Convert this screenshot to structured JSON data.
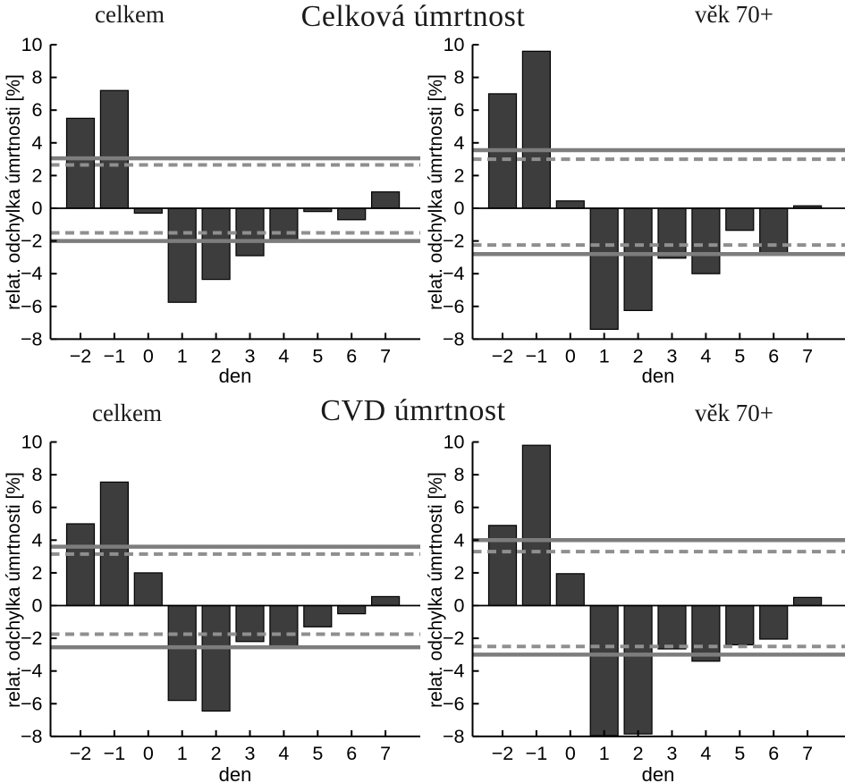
{
  "titles": {
    "top": "Celková úmrtnost",
    "bottom": "CVD úmrtnost"
  },
  "chart_data": {
    "type": "bar",
    "categories": [
      -2,
      -1,
      0,
      1,
      2,
      3,
      4,
      5,
      6,
      7
    ],
    "xlabel": "den",
    "ylabel": "relat. odchylka úmrtnosti [%]",
    "ylim": [
      -8,
      10
    ],
    "yticks": [
      10,
      8,
      6,
      4,
      2,
      0,
      -2,
      -4,
      -6,
      -8
    ],
    "grid": false,
    "legend": "none",
    "bar_color": "#3d3d3d",
    "bar_edge_color": "#000000",
    "solid_line_color": "#7d7d7d",
    "dashed_line_color": "#8f8f8f",
    "charts": [
      {
        "row_title": "Celková úmrtnost",
        "subtitle": "celkem",
        "values": [
          5.5,
          7.2,
          -0.3,
          -5.75,
          -4.35,
          -2.9,
          -2.0,
          -0.2,
          -0.7,
          1.0
        ],
        "solid_upper": 3.05,
        "solid_lower": -2.0,
        "dashed_upper": 2.65,
        "dashed_lower": -1.5
      },
      {
        "row_title": "Celková úmrtnost",
        "subtitle": "věk 70+",
        "values": [
          7.0,
          9.6,
          0.45,
          -7.4,
          -6.25,
          -3.05,
          -4.0,
          -1.35,
          -2.85,
          0.15
        ],
        "solid_upper": 3.55,
        "solid_lower": -2.8,
        "dashed_upper": 3.0,
        "dashed_lower": -2.25
      },
      {
        "row_title": "CVD úmrtnost",
        "subtitle": "celkem",
        "values": [
          5.0,
          7.55,
          2.0,
          -5.8,
          -6.45,
          -2.2,
          -2.6,
          -1.3,
          -0.5,
          0.55
        ],
        "solid_upper": 3.6,
        "solid_lower": -2.55,
        "dashed_upper": 3.15,
        "dashed_lower": -1.75
      },
      {
        "row_title": "CVD úmrtnost",
        "subtitle": "věk 70+",
        "values": [
          4.9,
          9.8,
          1.95,
          -7.95,
          -7.85,
          -2.65,
          -3.4,
          -2.4,
          -2.05,
          0.5
        ],
        "solid_upper": 4.0,
        "solid_lower": -3.0,
        "dashed_upper": 3.3,
        "dashed_lower": -2.5
      }
    ]
  }
}
